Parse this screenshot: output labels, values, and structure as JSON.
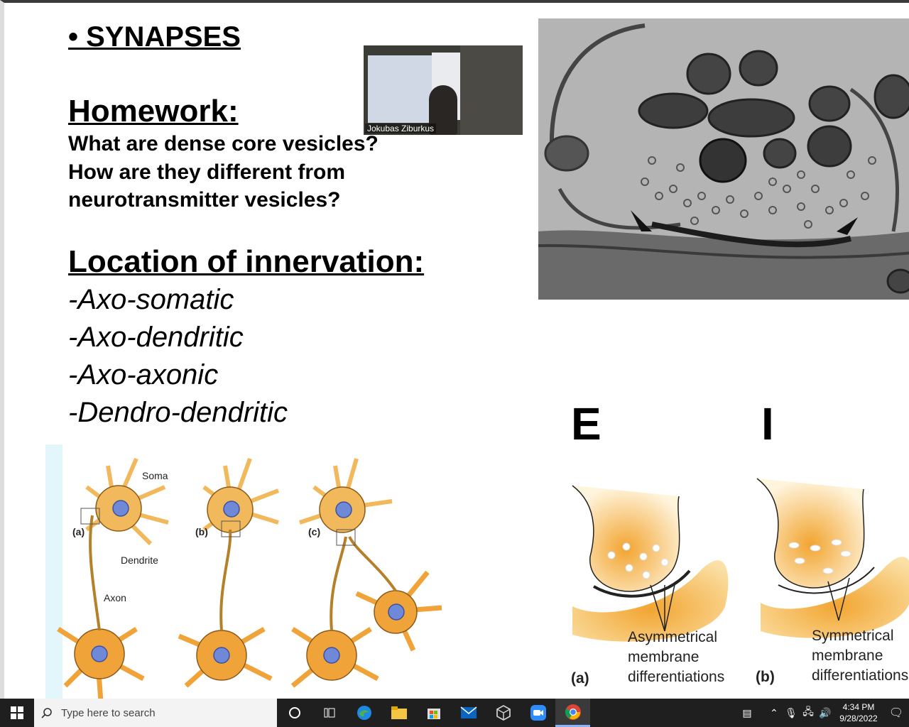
{
  "slide": {
    "title": "• SYNAPSES",
    "homework_heading": "Homework:",
    "homework_lines": [
      "What are dense core vesicles?",
      "How are they different from",
      "neurotransmitter vesicles?"
    ],
    "location_heading": "Location of innervation:",
    "location_items": [
      "-Axo-somatic",
      "-Axo-dendritic",
      "-Axo-axonic",
      "-Dendro-dendritic"
    ],
    "excitatory_letter": "E",
    "inhibitory_letter": "I",
    "neuron_figure": {
      "soma": "Soma",
      "dendrite": "Dendrite",
      "axon": "Axon",
      "panel_a": "(a)",
      "panel_b": "(b)",
      "panel_c": "(c)"
    },
    "synapse_figure": {
      "panel_a": "(a)",
      "panel_b": "(b)",
      "asym_line1": "Asymmetrical",
      "asym_line2": "membrane",
      "asym_line3": "differentiations",
      "sym_line1": "Symmetrical",
      "sym_line2": "membrane",
      "sym_line3": "differentiations"
    }
  },
  "video": {
    "participant_name": "Jokubas Ziburkus"
  },
  "taskbar": {
    "search_placeholder": "Type here to search",
    "time": "4:34 PM",
    "date": "9/28/2022",
    "apps": [
      "task-view",
      "edge",
      "file-explorer",
      "store",
      "mail",
      "dev-app",
      "zoom",
      "chrome"
    ]
  },
  "colors": {
    "taskbar_bg": "#1f1f1f",
    "cell_orange": "#f2a531",
    "nucleus_blue": "#6f88d8"
  }
}
